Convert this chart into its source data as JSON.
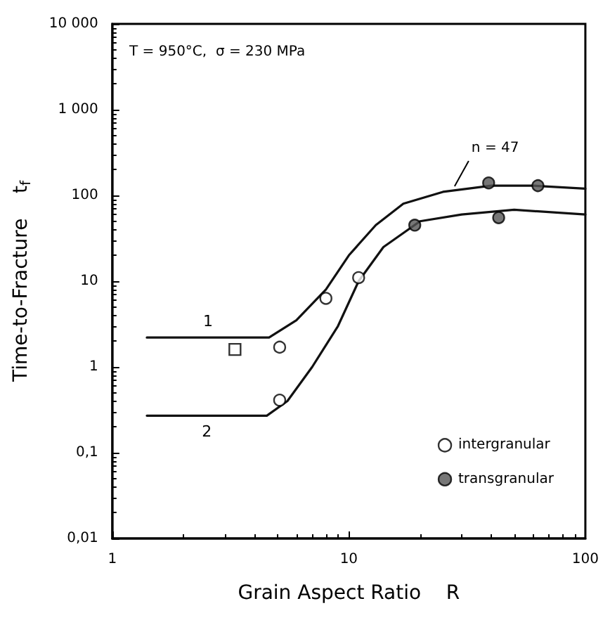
{
  "chart_data": {
    "type": "scatter",
    "xlabel": "Grain Aspect Ratio    R",
    "ylabel": "Time-to-Fracture    t$_{f}$",
    "log": "xy",
    "grid": false,
    "legend": "bottom right",
    "xlim": [
      1,
      100
    ],
    "xticks": [
      1,
      10,
      100
    ],
    "ylim": [
      0.01,
      10000
    ],
    "yticks": [
      {
        "value": 0.01,
        "label": "0,01"
      },
      {
        "value": 0.1,
        "label": "0,1"
      },
      1,
      10,
      100,
      {
        "value": 1000,
        "label": "1 000"
      },
      {
        "value": 10000,
        "label": "10 000"
      }
    ],
    "annotations": [
      "T = 950°C,  σ = 230 MPa",
      {
        "text": "n = 47",
        "x": 28,
        "y": 110
      }
    ],
    "series": [
      {
        "name": "intergranular",
        "marker": "circle",
        "color": "#ffffff",
        "x": [
          5.1,
          5.1,
          8,
          11
        ],
        "values": [
          1.7,
          0.41,
          6.3,
          11
        ]
      },
      {
        "marker": "square",
        "color": "#ffffff",
        "x": [
          3.3
        ],
        "values": [
          1.6
        ]
      },
      {
        "name": "transgranular",
        "marker": "circle",
        "color": "#555555",
        "x": [
          19,
          39,
          43,
          63
        ],
        "values": [
          45,
          140,
          55,
          130
        ]
      },
      {
        "name": "1",
        "type": "line",
        "marker": "none",
        "line_style": "solid",
        "color": "#111111",
        "x": [
          1.4,
          4.6,
          6,
          8,
          10,
          13,
          17,
          25,
          40,
          60,
          100
        ],
        "values": [
          2.2,
          2.2,
          3.5,
          8,
          20,
          45,
          80,
          110,
          130,
          130,
          120
        ]
      },
      {
        "name": "2",
        "type": "line",
        "marker": "none",
        "line_style": "solid",
        "color": "#111111",
        "x": [
          1.4,
          4.5,
          5.5,
          7,
          9,
          11,
          14,
          20,
          30,
          50,
          100
        ],
        "values": [
          0.27,
          0.27,
          0.4,
          1,
          3,
          10,
          25,
          50,
          60,
          68,
          60
        ]
      }
    ]
  }
}
